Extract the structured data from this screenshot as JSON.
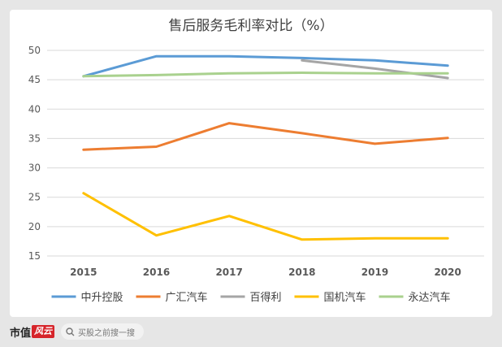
{
  "chart_data": {
    "type": "line",
    "title": "售后服务毛利率对比（%）",
    "categories": [
      "2015",
      "2016",
      "2017",
      "2018",
      "2019",
      "2020"
    ],
    "ylim": [
      15,
      50
    ],
    "yticks": [
      15,
      20,
      25,
      30,
      35,
      40,
      45,
      50
    ],
    "grid": true,
    "legend_position": "bottom",
    "series": [
      {
        "name": "中升控股",
        "color": "#5b9bd5",
        "values": [
          45.6,
          49.0,
          49.0,
          48.7,
          48.3,
          47.4
        ]
      },
      {
        "name": "广汇汽车",
        "color": "#ed7d31",
        "values": [
          33.1,
          33.6,
          37.6,
          35.9,
          34.1,
          35.1
        ]
      },
      {
        "name": "百得利",
        "color": "#a5a5a5",
        "values": [
          null,
          null,
          null,
          48.3,
          46.9,
          45.3
        ]
      },
      {
        "name": "国机汽车",
        "color": "#ffc000",
        "values": [
          25.7,
          18.5,
          21.8,
          17.8,
          18.0,
          18.0
        ]
      },
      {
        "name": "永达汽车",
        "color": "#a9d18e",
        "values": [
          45.6,
          45.8,
          46.1,
          46.2,
          46.1,
          46.1
        ]
      }
    ]
  },
  "footer": {
    "brand": "市值",
    "brand_mark": "风云",
    "search_text": "买股之前搜一搜",
    "search_icon": "search-icon"
  },
  "watermark": "市值风云"
}
